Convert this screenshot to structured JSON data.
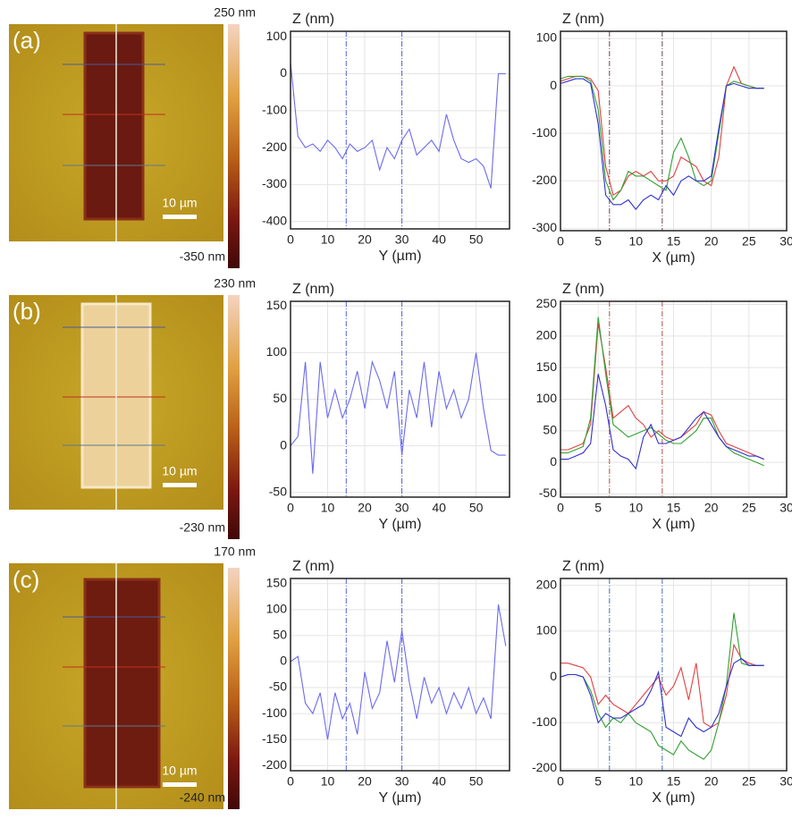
{
  "panels": [
    {
      "label": "(a)",
      "colorbar_max": "250 nm",
      "colorbar_min": "-350 nm",
      "scale_bar": "10 µm"
    },
    {
      "label": "(b)",
      "colorbar_max": "230 nm",
      "colorbar_min": "-230 nm",
      "scale_bar": "10 µm"
    },
    {
      "label": "(c)",
      "colorbar_max": "170 nm",
      "colorbar_min": "-240 nm",
      "scale_bar": "10 µm"
    }
  ],
  "chart_data": [
    {
      "type": "line",
      "title": "Z (nm)",
      "x_label": "Y (µm)",
      "x": [
        0,
        2,
        4,
        6,
        8,
        10,
        12,
        14,
        16,
        18,
        20,
        22,
        24,
        26,
        28,
        30,
        32,
        34,
        36,
        38,
        40,
        42,
        44,
        46,
        48,
        50,
        52,
        54,
        56,
        58
      ],
      "series": [
        {
          "color": "#6a6af0",
          "values": [
            30,
            -170,
            -200,
            -190,
            -210,
            -180,
            -200,
            -230,
            -190,
            -210,
            -200,
            -180,
            -260,
            -200,
            -230,
            -180,
            -150,
            -220,
            -200,
            -180,
            -210,
            -110,
            -180,
            -230,
            -240,
            -230,
            -250,
            -310,
            0,
            0
          ]
        }
      ],
      "xlim": [
        0,
        59
      ],
      "xticks": [
        0,
        10,
        20,
        30,
        40,
        50
      ],
      "ylim": [
        -420,
        115
      ],
      "yticks": [
        100,
        0,
        -100,
        -200,
        -300,
        -400
      ],
      "vlines": [
        15,
        30
      ],
      "vline_color": "#5060e0"
    },
    {
      "type": "line",
      "title": "Z (nm)",
      "x_label": "X (µm)",
      "x": [
        0,
        1,
        2,
        3,
        4,
        5,
        6,
        7,
        8,
        9,
        10,
        11,
        12,
        13,
        14,
        15,
        16,
        17,
        18,
        19,
        20,
        21,
        22,
        23,
        24,
        25,
        26,
        27
      ],
      "series": [
        {
          "color": "#e04040",
          "values": [
            10,
            15,
            20,
            20,
            15,
            -10,
            -170,
            -230,
            -220,
            -190,
            -180,
            -190,
            -180,
            -200,
            -200,
            -190,
            -150,
            -160,
            -170,
            -200,
            -210,
            -150,
            0,
            40,
            5,
            0,
            -5,
            -5
          ]
        },
        {
          "color": "#30a030",
          "values": [
            15,
            20,
            20,
            20,
            10,
            -50,
            -200,
            -240,
            -220,
            -180,
            -190,
            -190,
            -200,
            -210,
            -220,
            -140,
            -110,
            -150,
            -200,
            -210,
            -200,
            -100,
            0,
            10,
            5,
            0,
            -5,
            -5
          ]
        },
        {
          "color": "#3030d0",
          "values": [
            5,
            10,
            15,
            15,
            5,
            -80,
            -230,
            -250,
            -250,
            -240,
            -260,
            -240,
            -230,
            -240,
            -210,
            -230,
            -200,
            -190,
            -200,
            -200,
            -190,
            -90,
            0,
            5,
            0,
            -5,
            -5,
            -5
          ]
        }
      ],
      "xlim": [
        0,
        30
      ],
      "xticks": [
        0,
        5,
        10,
        15,
        20,
        25,
        30
      ],
      "ylim": [
        -305,
        115
      ],
      "yticks": [
        100,
        0,
        -100,
        -200,
        -300
      ],
      "vlines": [
        6.5,
        13.5
      ],
      "vline_color": "#704050"
    },
    {
      "type": "line",
      "title": "Z (nm)",
      "x_label": "Y (µm)",
      "x": [
        0,
        2,
        4,
        6,
        8,
        10,
        12,
        14,
        16,
        18,
        20,
        22,
        24,
        26,
        28,
        30,
        32,
        34,
        36,
        38,
        40,
        42,
        44,
        46,
        48,
        50,
        52,
        54,
        56,
        58
      ],
      "series": [
        {
          "color": "#6a6af0",
          "values": [
            0,
            10,
            90,
            -30,
            90,
            30,
            60,
            30,
            50,
            80,
            40,
            90,
            70,
            40,
            80,
            -10,
            60,
            30,
            90,
            20,
            80,
            40,
            60,
            30,
            50,
            100,
            40,
            -5,
            -10,
            -10
          ]
        }
      ],
      "xlim": [
        0,
        59
      ],
      "xticks": [
        0,
        10,
        20,
        30,
        40,
        50
      ],
      "ylim": [
        -55,
        155
      ],
      "yticks": [
        150,
        100,
        50,
        0,
        -50
      ],
      "vlines": [
        15,
        30
      ],
      "vline_color": "#5060e0"
    },
    {
      "type": "line",
      "title": "Z (nm)",
      "x_label": "X (µm)",
      "x": [
        0,
        1,
        2,
        3,
        4,
        5,
        6,
        7,
        8,
        9,
        10,
        11,
        12,
        13,
        14,
        15,
        16,
        17,
        18,
        19,
        20,
        21,
        22,
        23,
        24,
        25,
        26,
        27
      ],
      "series": [
        {
          "color": "#e04040",
          "values": [
            20,
            20,
            25,
            30,
            60,
            220,
            150,
            70,
            80,
            90,
            70,
            60,
            40,
            50,
            40,
            35,
            40,
            50,
            60,
            80,
            75,
            50,
            30,
            25,
            20,
            15,
            10,
            5
          ]
        },
        {
          "color": "#30a030",
          "values": [
            15,
            15,
            20,
            25,
            70,
            230,
            140,
            60,
            50,
            40,
            45,
            50,
            55,
            45,
            35,
            30,
            30,
            40,
            50,
            70,
            70,
            40,
            25,
            15,
            10,
            5,
            0,
            -5
          ]
        },
        {
          "color": "#3030d0",
          "values": [
            5,
            5,
            10,
            15,
            30,
            140,
            90,
            20,
            10,
            5,
            -10,
            40,
            60,
            30,
            30,
            35,
            40,
            55,
            70,
            80,
            60,
            40,
            25,
            20,
            15,
            10,
            10,
            5
          ]
        }
      ],
      "xlim": [
        0,
        30
      ],
      "xticks": [
        0,
        5,
        10,
        15,
        20,
        25,
        30
      ],
      "ylim": [
        -55,
        255
      ],
      "yticks": [
        250,
        200,
        150,
        100,
        50,
        0,
        -50
      ],
      "vlines": [
        6.5,
        13.5
      ],
      "vline_color": "#b05040"
    },
    {
      "type": "line",
      "title": "Z (nm)",
      "x_label": "Y (µm)",
      "x": [
        0,
        2,
        4,
        6,
        8,
        10,
        12,
        14,
        16,
        18,
        20,
        22,
        24,
        26,
        28,
        30,
        32,
        34,
        36,
        38,
        40,
        42,
        44,
        46,
        48,
        50,
        52,
        54,
        56,
        58
      ],
      "series": [
        {
          "color": "#6a6af0",
          "values": [
            0,
            10,
            -80,
            -100,
            -60,
            -150,
            -60,
            -110,
            -80,
            -140,
            -20,
            -90,
            -60,
            40,
            -40,
            60,
            -40,
            -110,
            -30,
            -80,
            -50,
            -100,
            -60,
            -90,
            -50,
            -100,
            -70,
            -110,
            110,
            30
          ]
        }
      ],
      "xlim": [
        0,
        59
      ],
      "xticks": [
        0,
        10,
        20,
        30,
        40,
        50
      ],
      "ylim": [
        -210,
        160
      ],
      "yticks": [
        150,
        100,
        50,
        0,
        -50,
        -100,
        -150,
        -200
      ],
      "vlines": [
        15,
        30
      ],
      "vline_color": "#5060e0"
    },
    {
      "type": "line",
      "title": "Z (nm)",
      "x_label": "X (µm)",
      "x": [
        0,
        1,
        2,
        3,
        4,
        5,
        6,
        7,
        8,
        9,
        10,
        11,
        12,
        13,
        14,
        15,
        16,
        17,
        18,
        19,
        20,
        21,
        22,
        23,
        24,
        25,
        26,
        27
      ],
      "series": [
        {
          "color": "#e04040",
          "values": [
            30,
            30,
            25,
            20,
            0,
            -60,
            -40,
            -60,
            -70,
            -80,
            -60,
            -40,
            -20,
            0,
            -40,
            -20,
            20,
            -50,
            30,
            -100,
            -110,
            -100,
            -40,
            70,
            40,
            30,
            25,
            25
          ]
        },
        {
          "color": "#30a030",
          "values": [
            0,
            5,
            5,
            0,
            -30,
            -80,
            -110,
            -90,
            -100,
            -80,
            -100,
            -110,
            -120,
            -150,
            -160,
            -170,
            -140,
            -160,
            -170,
            -180,
            -160,
            -100,
            -20,
            140,
            30,
            25,
            25,
            25
          ]
        },
        {
          "color": "#3030d0",
          "values": [
            0,
            5,
            5,
            0,
            -40,
            -100,
            -80,
            -90,
            -90,
            -80,
            -70,
            -60,
            -30,
            10,
            -110,
            -120,
            -130,
            -90,
            -110,
            -120,
            -110,
            -80,
            -20,
            30,
            40,
            25,
            25,
            25
          ]
        }
      ],
      "xlim": [
        0,
        30
      ],
      "xticks": [
        0,
        5,
        10,
        15,
        20,
        25,
        30
      ],
      "ylim": [
        -205,
        215
      ],
      "yticks": [
        200,
        100,
        0,
        -100,
        -200
      ],
      "vlines": [
        6.5,
        13.5
      ],
      "vline_color": "#4070b0"
    }
  ]
}
